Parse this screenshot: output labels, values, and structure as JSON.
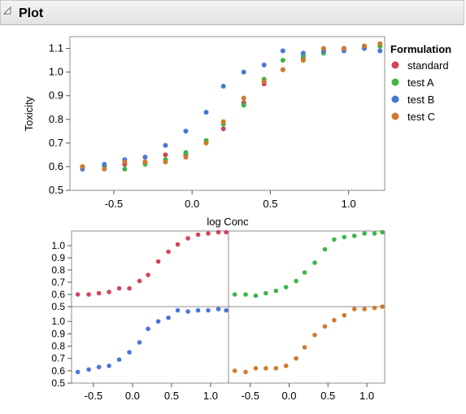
{
  "header": {
    "title": "Plot"
  },
  "colors": {
    "standard": "#d0455a",
    "test A": "#3db646",
    "test B": "#4a76d8",
    "test C": "#cf7a2c",
    "frame": "#8c8c8c",
    "grid": "#c0c0c0"
  },
  "legend": {
    "title": "Formulation",
    "items": [
      "standard",
      "test A",
      "test B",
      "test C"
    ]
  },
  "chart_data": [
    {
      "type": "scatter",
      "title": "",
      "xlabel": "log Conc",
      "ylabel": "Toxicity",
      "xlim": [
        -0.78,
        1.23
      ],
      "ylim": [
        0.5,
        1.15
      ],
      "xticks": [
        "-0.5",
        "0.0",
        "0.5",
        "1.0"
      ],
      "xtick_values": [
        -0.5,
        0.0,
        0.5,
        1.0
      ],
      "yticks": [
        "0.5",
        "0.6",
        "0.7",
        "0.8",
        "0.9",
        "1.0",
        "1.1"
      ],
      "ytick_values": [
        0.5,
        0.6,
        0.7,
        0.8,
        0.9,
        1.0,
        1.1
      ],
      "x": [
        -0.7,
        -0.56,
        -0.43,
        -0.3,
        -0.17,
        -0.04,
        0.09,
        0.2,
        0.33,
        0.46,
        0.58,
        0.71,
        0.84,
        0.97,
        1.1,
        1.2
      ],
      "series": [
        {
          "name": "standard",
          "values": [
            0.6,
            0.6,
            0.61,
            0.62,
            0.65,
            0.65,
            0.71,
            0.76,
            0.87,
            0.95,
            1.01,
            1.06,
            1.09,
            1.1,
            1.11,
            1.11
          ]
        },
        {
          "name": "test A",
          "values": [
            0.6,
            0.6,
            0.59,
            0.61,
            0.63,
            0.66,
            0.71,
            0.78,
            0.86,
            0.97,
            1.05,
            1.07,
            1.08,
            1.1,
            1.1,
            1.11
          ]
        },
        {
          "name": "test B",
          "values": [
            0.59,
            0.61,
            0.63,
            0.64,
            0.69,
            0.75,
            0.83,
            0.94,
            1.0,
            1.03,
            1.09,
            1.08,
            1.09,
            1.09,
            1.1,
            1.09
          ]
        },
        {
          "name": "test C",
          "values": [
            0.6,
            0.59,
            0.62,
            0.62,
            0.62,
            0.64,
            0.7,
            0.79,
            0.89,
            0.96,
            1.01,
            1.05,
            1.1,
            1.1,
            1.11,
            1.12
          ]
        }
      ]
    },
    {
      "type": "scatter",
      "title": "",
      "xlabel": "",
      "ylabel": "",
      "layout": "2x2 small multiples, one panel per formulation (top-left standard, top-right test A, bottom-left test B, bottom-right test C)",
      "xlim": [
        -0.78,
        1.23
      ],
      "ylim": [
        0.5,
        1.12
      ],
      "xticks": [
        "-0.5",
        "0.0",
        "0.5",
        "1.0"
      ],
      "xtick_values": [
        -0.5,
        0.0,
        0.5,
        1.0
      ],
      "yticks": [
        "0.5",
        "0.6",
        "0.7",
        "0.8",
        "0.9",
        "1.0"
      ],
      "ytick_values": [
        0.5,
        0.6,
        0.7,
        0.8,
        0.9,
        1.0
      ]
    }
  ]
}
